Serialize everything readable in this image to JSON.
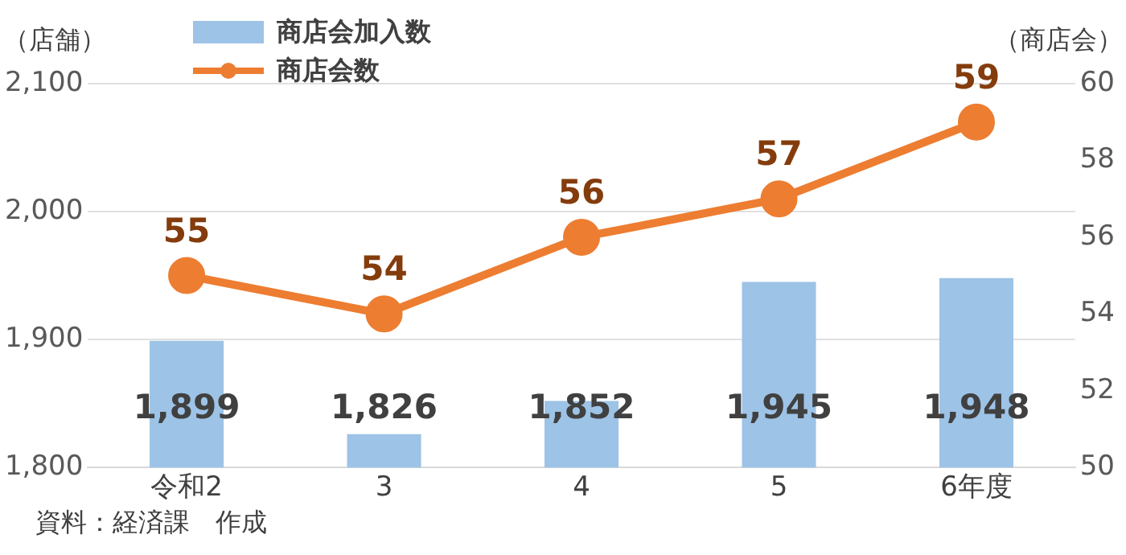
{
  "chart_data": {
    "type": "bar",
    "ylabel": "（店舗）",
    "y2label": "（商店会）",
    "categories": [
      "令和2",
      "3",
      "4",
      "5",
      "6年度"
    ],
    "series": [
      {
        "name": "商店会加入数",
        "color": "#9dc3e6",
        "values": [
          1899,
          1826,
          1852,
          1945,
          1948
        ],
        "value_labels": [
          "1,899",
          "1,826",
          "1,852",
          "1,945",
          "1,948"
        ]
      },
      {
        "name": "商店会数",
        "type": "line",
        "axis": "y2",
        "color": "#ed7d31",
        "values": [
          55,
          54,
          56,
          57,
          59
        ],
        "value_labels": [
          "55",
          "54",
          "56",
          "57",
          "59"
        ]
      }
    ],
    "ylim": [
      1800,
      2100
    ],
    "yticks": [
      {
        "value": 1800,
        "label": "1,800"
      },
      {
        "value": 1900,
        "label": "1,900"
      },
      {
        "value": 2000,
        "label": "2,000"
      },
      {
        "value": 2100,
        "label": "2,100"
      }
    ],
    "y2lim": [
      50,
      60
    ],
    "y2ticks": [
      50,
      52,
      54,
      56,
      58,
      60
    ],
    "grid": "y",
    "legend": "top",
    "marker": "circle",
    "annotations": [
      "資料：経済課　作成"
    ]
  }
}
